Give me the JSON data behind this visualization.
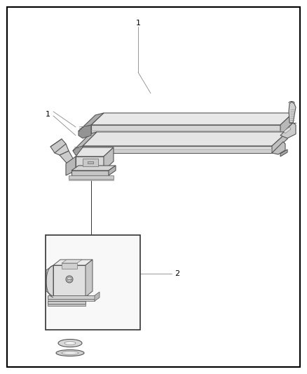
{
  "background_color": "#ffffff",
  "border_color": "#000000",
  "border_lw": 1.5,
  "line_color": "#555555",
  "dark_line": "#333333",
  "light_fill": "#eeeeee",
  "mid_fill": "#d8d8d8",
  "dark_fill": "#bbbbbb",
  "figsize": [
    4.38,
    5.33
  ],
  "dpi": 100
}
